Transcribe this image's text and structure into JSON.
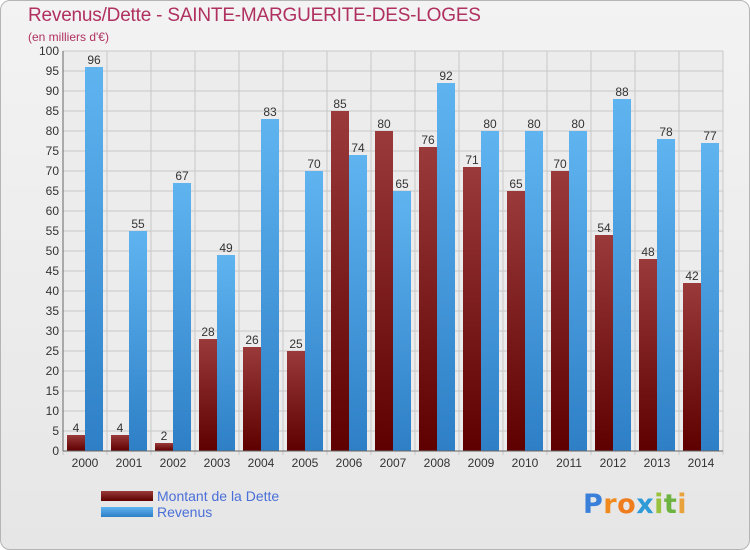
{
  "header": {
    "title": "Revenus/Dette - SAINTE-MARGUERITE-DES-LOGES",
    "subtitle": "(en milliers d'€)"
  },
  "legend": {
    "items": [
      {
        "label": "Montant de la Dette",
        "color": "#7a1010"
      },
      {
        "label": "Revenus",
        "color": "#4da6ec"
      }
    ]
  },
  "logo": {
    "text": "Proxiti",
    "letters": [
      "P",
      "r",
      "o",
      "x",
      "i",
      "t",
      "i"
    ],
    "letter_colors": [
      "#3a7fd9",
      "#f08a1c",
      "#ef7d1d",
      "#2f9ad8",
      "#9ac23c",
      "#6db33f",
      "#e9a23b"
    ]
  },
  "chart_data": {
    "type": "bar",
    "categories": [
      "2000",
      "2001",
      "2002",
      "2003",
      "2004",
      "2005",
      "2006",
      "2007",
      "2008",
      "2009",
      "2010",
      "2011",
      "2012",
      "2013",
      "2014"
    ],
    "series": [
      {
        "name": "Montant de la Dette",
        "color": "#7a1010",
        "values": [
          4,
          4,
          2,
          28,
          26,
          25,
          85,
          80,
          76,
          71,
          65,
          70,
          54,
          48,
          42
        ]
      },
      {
        "name": "Revenus",
        "color": "#4da6ec",
        "values": [
          96,
          55,
          67,
          49,
          83,
          70,
          74,
          65,
          92,
          80,
          80,
          80,
          88,
          78,
          77
        ]
      }
    ],
    "ylim": [
      0,
      100
    ],
    "yticks": [
      "0",
      "5",
      "10",
      "15",
      "20",
      "25",
      "30",
      "35",
      "40",
      "45",
      "50",
      "55",
      "60",
      "65",
      "70",
      "75",
      "80",
      "85",
      "90",
      "95",
      "100"
    ],
    "grid": true,
    "data_labels": true
  }
}
